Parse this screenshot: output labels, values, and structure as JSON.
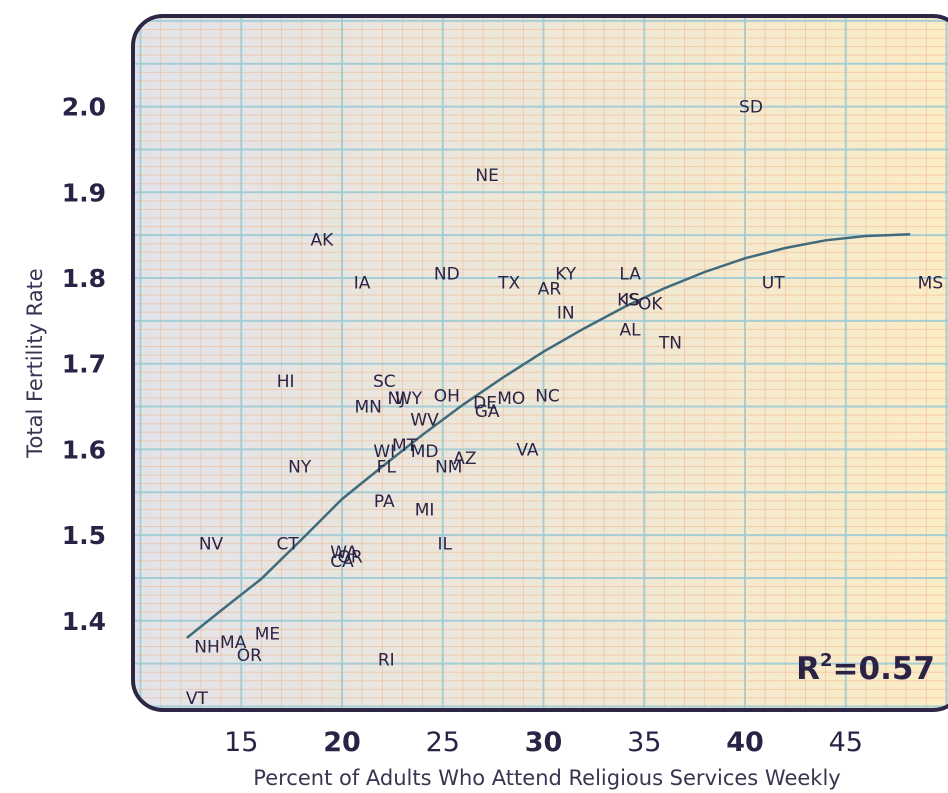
{
  "chart_data": {
    "type": "scatter",
    "title": "",
    "xlabel": "Percent of Adults Who Attend Religious Services Weekly",
    "ylabel": "Total Fertility Rate",
    "xlim": [
      10,
      52
    ],
    "ylim": [
      1.31,
      2.1
    ],
    "xticks": [
      "15",
      "20",
      "25",
      "30",
      "35",
      "40",
      "45"
    ],
    "xticks_bold": [
      "20",
      "30",
      "40"
    ],
    "yticks": [
      "1.4",
      "1.5",
      "1.6",
      "1.7",
      "1.8",
      "1.9",
      "2.0"
    ],
    "grid": true,
    "annotation": {
      "base": "R",
      "sup": "2",
      "rest": "=0.57"
    },
    "trendline": {
      "type": "quadratic",
      "x": [
        12.3,
        14,
        16,
        18,
        20,
        22,
        24,
        26,
        28,
        30,
        32,
        34,
        36,
        38,
        40,
        42,
        44,
        46,
        48.2
      ],
      "y": [
        1.38,
        1.412,
        1.449,
        1.495,
        1.542,
        1.58,
        1.617,
        1.652,
        1.684,
        1.714,
        1.741,
        1.766,
        1.788,
        1.807,
        1.823,
        1.835,
        1.844,
        1.849,
        1.851
      ]
    },
    "points": [
      {
        "label": "SD",
        "x": 40.3,
        "y": 2.0
      },
      {
        "label": "NE",
        "x": 27.2,
        "y": 1.92
      },
      {
        "label": "AK",
        "x": 19.0,
        "y": 1.845
      },
      {
        "label": "IA",
        "x": 21.0,
        "y": 1.795
      },
      {
        "label": "ND",
        "x": 25.2,
        "y": 1.805
      },
      {
        "label": "TX",
        "x": 28.3,
        "y": 1.795
      },
      {
        "label": "KY",
        "x": 31.1,
        "y": 1.805
      },
      {
        "label": "AR",
        "x": 30.3,
        "y": 1.788
      },
      {
        "label": "LA",
        "x": 34.3,
        "y": 1.805
      },
      {
        "label": "UT",
        "x": 41.4,
        "y": 1.795
      },
      {
        "label": "MS",
        "x": 49.2,
        "y": 1.795
      },
      {
        "label": "KS",
        "x": 34.2,
        "y": 1.775
      },
      {
        "label": "IS",
        "x": 34.4,
        "y": 1.775
      },
      {
        "label": "OK",
        "x": 35.3,
        "y": 1.77
      },
      {
        "label": "IN",
        "x": 31.1,
        "y": 1.76
      },
      {
        "label": "AL",
        "x": 34.3,
        "y": 1.74
      },
      {
        "label": "TN",
        "x": 36.3,
        "y": 1.725
      },
      {
        "label": "HI",
        "x": 17.2,
        "y": 1.68
      },
      {
        "label": "SC",
        "x": 22.1,
        "y": 1.68
      },
      {
        "label": "MN",
        "x": 21.3,
        "y": 1.65
      },
      {
        "label": "WY",
        "x": 23.3,
        "y": 1.66
      },
      {
        "label": "NJ",
        "x": 22.7,
        "y": 1.66
      },
      {
        "label": "OH",
        "x": 25.2,
        "y": 1.663
      },
      {
        "label": "DE",
        "x": 27.1,
        "y": 1.655
      },
      {
        "label": "GA",
        "x": 27.2,
        "y": 1.645
      },
      {
        "label": "MO",
        "x": 28.4,
        "y": 1.66
      },
      {
        "label": "NC",
        "x": 30.2,
        "y": 1.663
      },
      {
        "label": "WV",
        "x": 24.1,
        "y": 1.635
      },
      {
        "label": "MT",
        "x": 23.1,
        "y": 1.605
      },
      {
        "label": "WI",
        "x": 22.1,
        "y": 1.598
      },
      {
        "label": "MD",
        "x": 24.1,
        "y": 1.598
      },
      {
        "label": "AZ",
        "x": 26.1,
        "y": 1.59
      },
      {
        "label": "NM",
        "x": 25.3,
        "y": 1.58
      },
      {
        "label": "VA",
        "x": 29.2,
        "y": 1.6
      },
      {
        "label": "NY",
        "x": 17.9,
        "y": 1.58
      },
      {
        "label": "FL",
        "x": 22.2,
        "y": 1.58
      },
      {
        "label": "PA",
        "x": 22.1,
        "y": 1.54
      },
      {
        "label": "MI",
        "x": 24.1,
        "y": 1.53
      },
      {
        "label": "NV",
        "x": 13.5,
        "y": 1.49
      },
      {
        "label": "CT",
        "x": 17.3,
        "y": 1.49
      },
      {
        "label": "IL",
        "x": 25.1,
        "y": 1.49
      },
      {
        "label": "WA",
        "x": 20.1,
        "y": 1.48
      },
      {
        "label": "OR2",
        "display": "OR",
        "x": 20.4,
        "y": 1.475
      },
      {
        "label": "CA",
        "x": 20.0,
        "y": 1.47
      },
      {
        "label": "ME",
        "x": 16.3,
        "y": 1.385
      },
      {
        "label": "MA",
        "x": 14.6,
        "y": 1.375
      },
      {
        "label": "NH",
        "x": 13.3,
        "y": 1.37
      },
      {
        "label": "OR",
        "x": 15.4,
        "y": 1.36
      },
      {
        "label": "RI",
        "x": 22.2,
        "y": 1.355
      },
      {
        "label": "VT",
        "x": 12.8,
        "y": 1.31
      }
    ]
  },
  "colors": {
    "frame": "#2e2645",
    "text": "#2b2346",
    "trendline": "#3f6b7c",
    "grid_orange": "#f1b48a",
    "grid_blue": "#9fcbd4",
    "bg_left": "#e2e3ea",
    "bg_right": "#fbecc4"
  }
}
